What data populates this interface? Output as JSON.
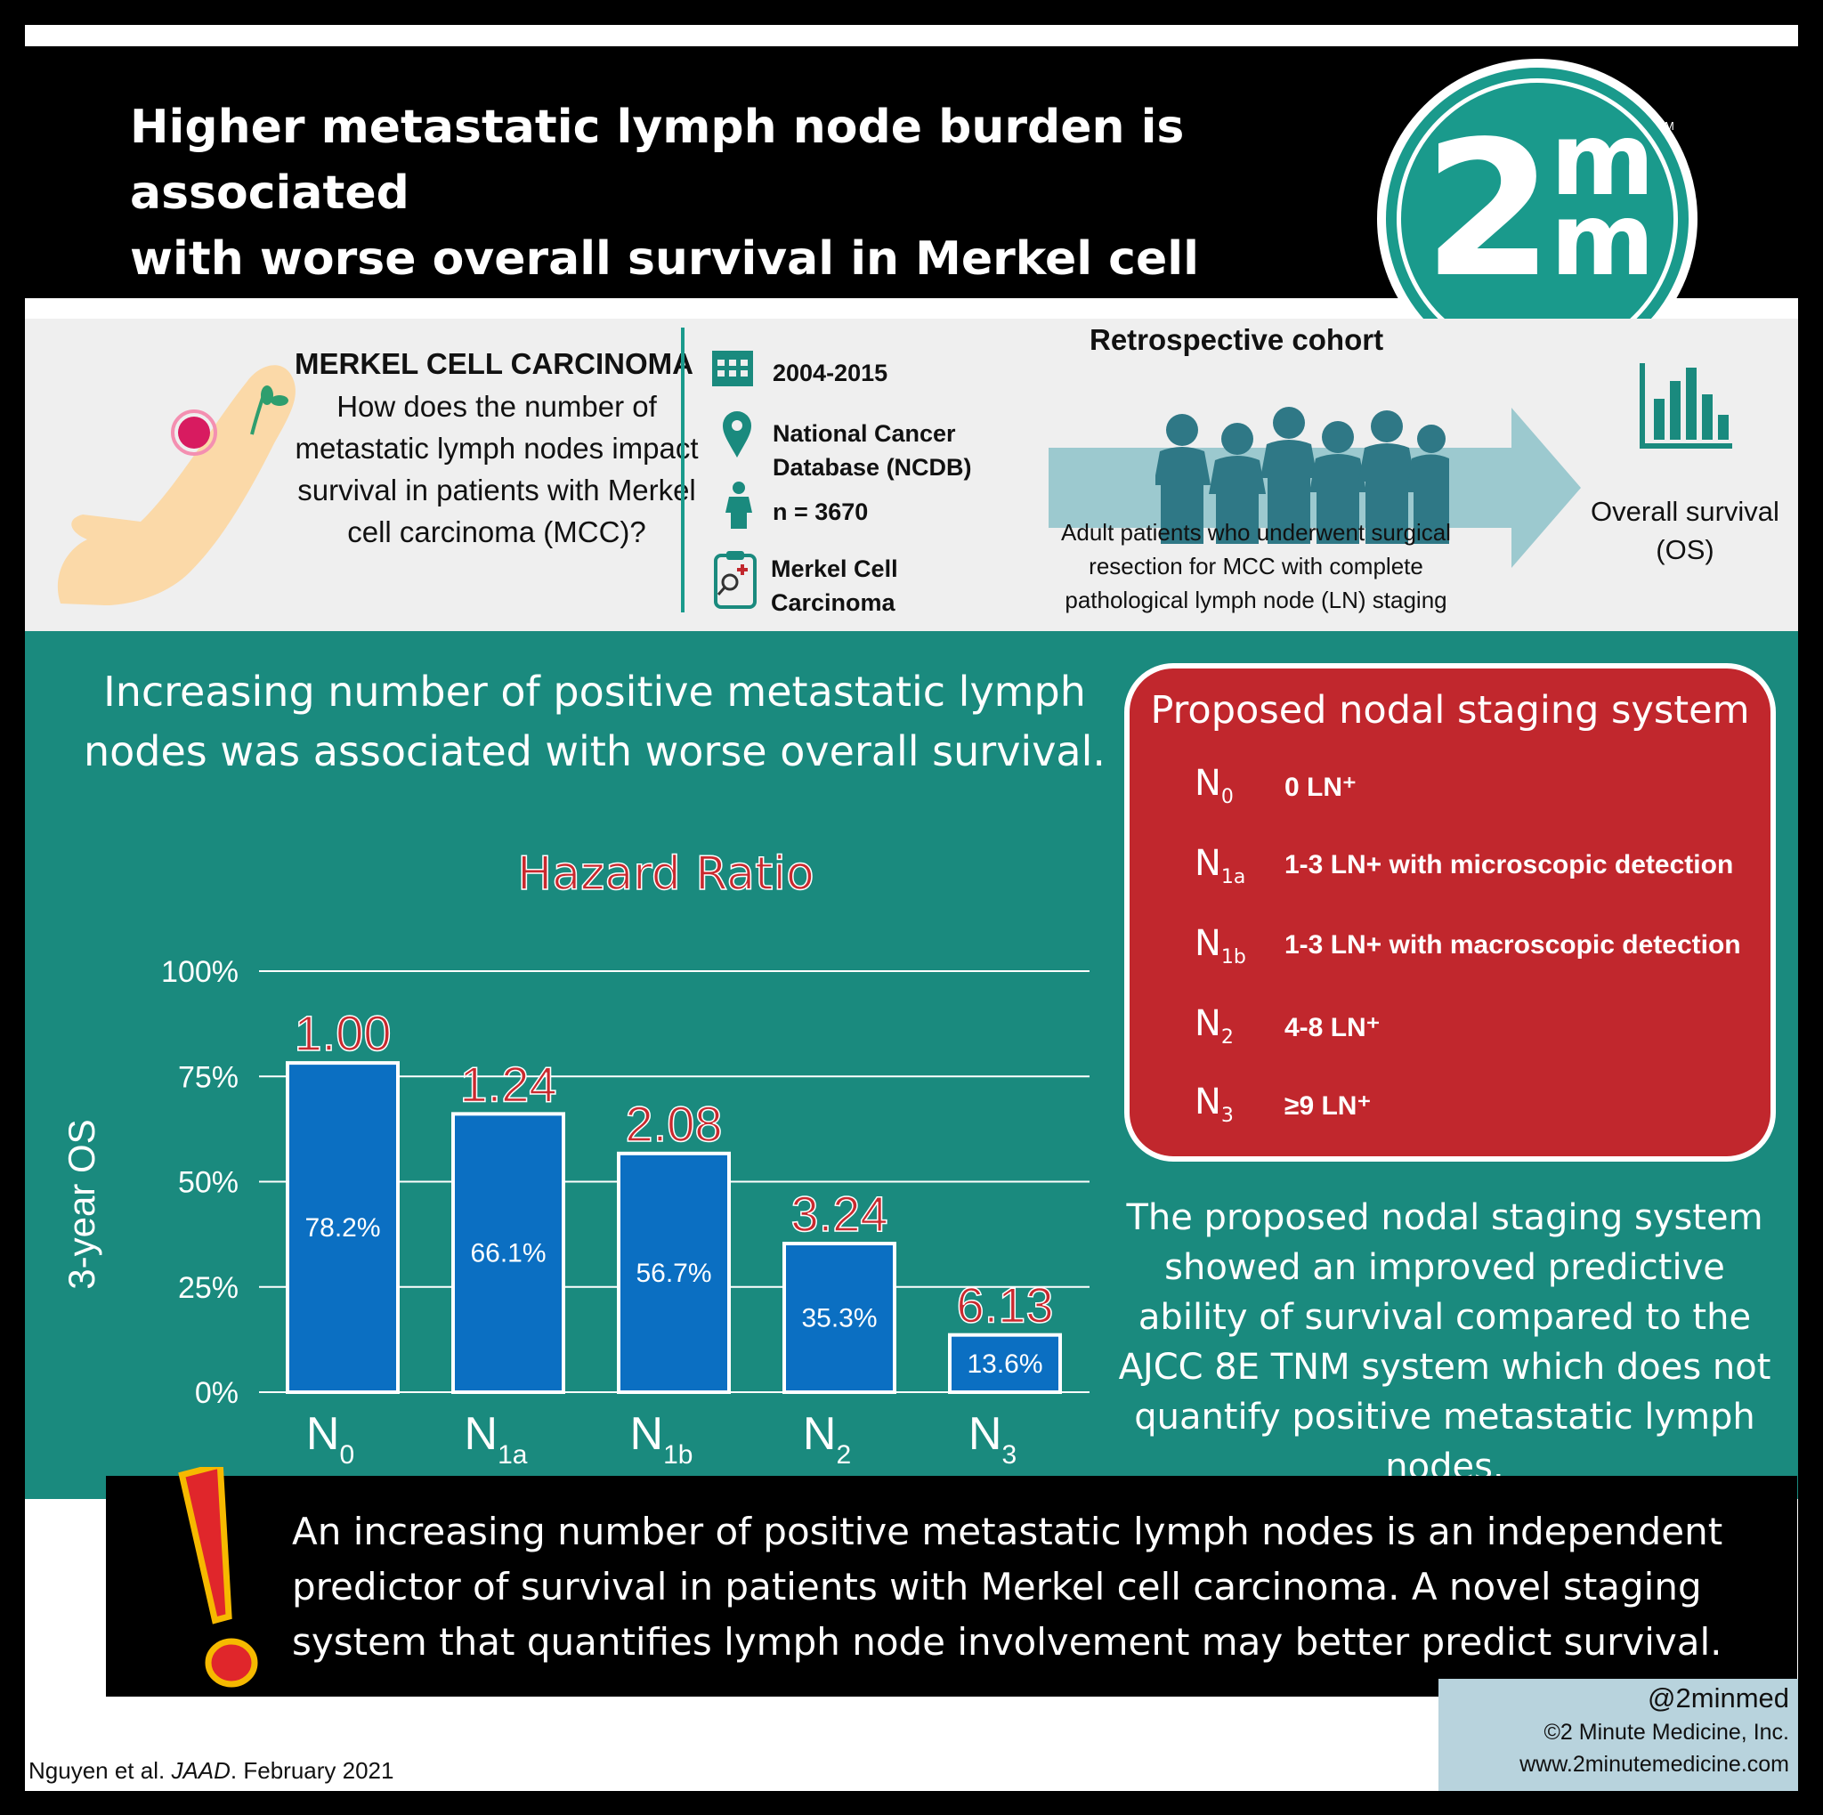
{
  "header": {
    "title_line1": "Higher metastatic lymph node burden is associated",
    "title_line2": "with worse overall survival in Merkel cell carcinoma",
    "logo": {
      "digit": "2",
      "letter_top": "m",
      "letter_bottom": "m",
      "tm": "TM"
    }
  },
  "info": {
    "heading": "MERKEL CELL CARCINOMA",
    "question": "How does the number of metastatic lymph nodes impact survival in patients with Merkel cell carcinoma (MCC)?",
    "years": "2004-2015",
    "database_line1": "National Cancer",
    "database_line2": "Database (NCDB)",
    "n": "n = 3670",
    "disease_line1": "Merkel Cell",
    "disease_line2": "Carcinoma",
    "cohort_title": "Retrospective cohort",
    "cohort_desc": "Adult patients who underwent surgical resection for MCC with complete pathological lymph node (LN) staging",
    "outcome": "Overall survival (OS)",
    "icons": [
      "arm-lesion-icon",
      "calendar-icon",
      "location-pin-icon",
      "person-icon",
      "clipboard-icon",
      "people-group-icon",
      "arrow-icon",
      "bar-chart-icon"
    ]
  },
  "finding": "Increasing number of positive metastatic lymph nodes was associated with worse overall survival.",
  "chart_data": {
    "type": "bar",
    "title": "Hazard Ratio",
    "ylabel": "3-year OS",
    "ylim": [
      0,
      100
    ],
    "yticks": [
      "0%",
      "25%",
      "50%",
      "75%",
      "100%"
    ],
    "categories": [
      {
        "main": "N",
        "sub": "0"
      },
      {
        "main": "N",
        "sub": "1a"
      },
      {
        "main": "N",
        "sub": "1b"
      },
      {
        "main": "N",
        "sub": "2"
      },
      {
        "main": "N",
        "sub": "3"
      }
    ],
    "values": [
      78.2,
      66.1,
      56.7,
      35.3,
      13.6
    ],
    "value_labels": [
      "78.2%",
      "66.1%",
      "56.7%",
      "35.3%",
      "13.6%"
    ],
    "hazard_ratios": [
      "1.00",
      "1.24",
      "2.08",
      "3.24",
      "6.13"
    ],
    "colors": {
      "bar": "#0b6fc2",
      "hazard": "#c9292e",
      "grid": "#ffffff"
    }
  },
  "staging": {
    "title": "Proposed nodal staging system",
    "rows": [
      {
        "code": "N",
        "sub": "0",
        "desc": "0 LN⁺"
      },
      {
        "code": "N",
        "sub": "1a",
        "desc": "1-3 LN+ with microscopic detection"
      },
      {
        "code": "N",
        "sub": "1b",
        "desc": "1-3 LN+ with macroscopic detection"
      },
      {
        "code": "N",
        "sub": "2",
        "desc": "4-8 LN⁺"
      },
      {
        "code": "N",
        "sub": "3",
        "desc": "≥9 LN⁺"
      }
    ]
  },
  "improved": "The proposed nodal staging system showed an improved predictive ability of survival compared to the AJCC 8E TNM system which does not quantify positive metastatic lymph nodes.",
  "bottom": {
    "text": "An increasing number of positive metastatic lymph nodes is an independent predictor of survival in patients with Merkel cell carcinoma. A novel staging system that quantifies lymph node involvement may better predict survival.",
    "icon": "exclamation-icon"
  },
  "footer": {
    "handle": "@2minmed",
    "copyright": "©2 Minute Medicine, Inc.",
    "site": "www.2minutemedicine.com",
    "citation_authors": "Nguyen et al. ",
    "citation_journal": "JAAD",
    "citation_date": ". February 2021"
  },
  "colors": {
    "teal": "#1a8a7e",
    "red": "#c1272d",
    "black": "#000000",
    "light_gray": "#efefef",
    "footer_blue": "#b8d3dd"
  }
}
